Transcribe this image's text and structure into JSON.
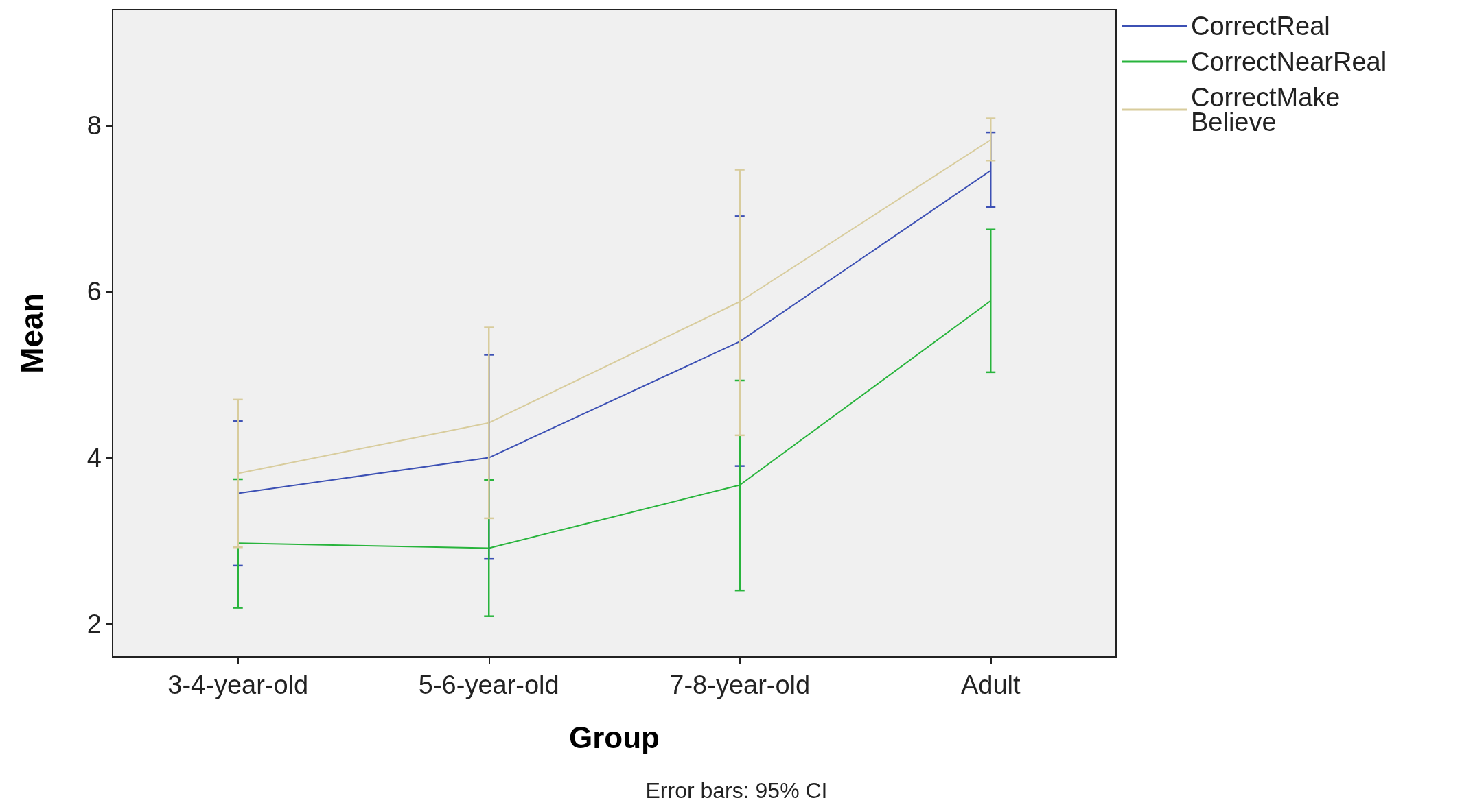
{
  "chart_data": {
    "type": "line",
    "xlabel": "Group",
    "ylabel": "Mean",
    "categories": [
      "3-4-year-old",
      "5-6-year-old",
      "7-8-year-old",
      "Adult"
    ],
    "series": [
      {
        "name": "CorrectReal",
        "color": "#3c50b4",
        "values": [
          3.57,
          4.0,
          5.4,
          7.46
        ],
        "errors": [
          [
            2.7,
            4.44
          ],
          [
            2.78,
            5.24
          ],
          [
            3.9,
            6.91
          ],
          [
            7.02,
            7.92
          ]
        ]
      },
      {
        "name": "CorrectNearReal",
        "color": "#28b43c",
        "values": [
          2.97,
          2.91,
          3.67,
          5.89
        ],
        "errors": [
          [
            2.19,
            3.74
          ],
          [
            2.09,
            3.73
          ],
          [
            2.4,
            4.93
          ],
          [
            5.03,
            6.75
          ]
        ]
      },
      {
        "name": "CorrectMake Believe",
        "color": "#d8cc9c",
        "values": [
          3.81,
          4.42,
          5.88,
          7.83
        ],
        "errors": [
          [
            2.92,
            4.7
          ],
          [
            3.27,
            5.57
          ],
          [
            4.27,
            7.47
          ],
          [
            7.58,
            8.09
          ]
        ]
      }
    ],
    "ylim": [
      1.6,
      9.4
    ],
    "yticks": [
      2,
      4,
      6,
      8
    ],
    "grid": false,
    "legend": "top right",
    "marker": "none",
    "line_style": "solid",
    "annotations": [
      "Error bars: 95% CI"
    ]
  }
}
